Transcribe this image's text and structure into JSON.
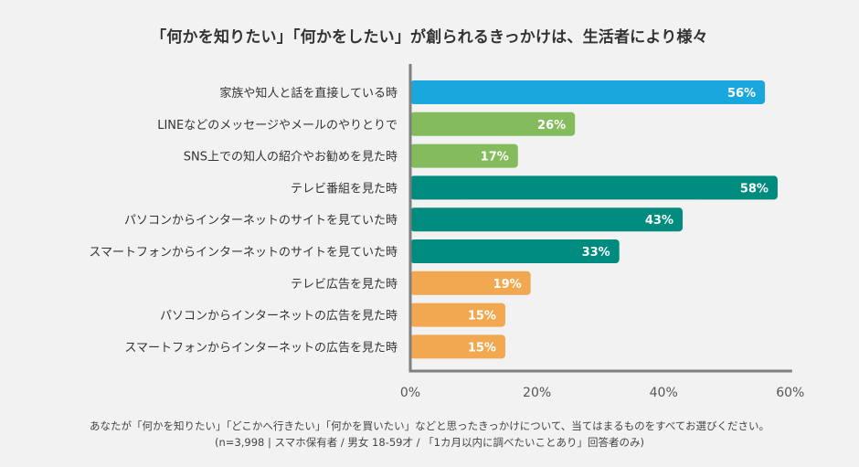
{
  "title": "「何かを知りたい」「何かをしたい」が創られるきっかけは、生活者により様々",
  "footnote": {
    "line1": "あなたが「何かを知りたい」「どこかへ行きたい」「何かを買いたい」などと思ったきっかけについて、当てはまるものをすべてお選びください。",
    "line2": "(n=3,998 | スマホ保有者 / 男女 18-59才 / 「1カ月以内に調べたいことあり」回答者のみ)"
  },
  "chart_data": {
    "type": "bar",
    "orientation": "horizontal",
    "title": "「何かを知りたい」「何かをしたい」が創られるきっかけは、生活者により様々",
    "categories": [
      "家族や知人と話を直接している時",
      "LINEなどのメッセージやメールのやりとりで",
      "SNS上での知人の紹介やお勧めを見た時",
      "テレビ番組を見た時",
      "パソコンからインターネットのサイトを見ていた時",
      "スマートフォンからインターネットのサイトを見ていた時",
      "テレビ広告を見た時",
      "パソコンからインターネットの広告を見た時",
      "スマートフォンからインターネットの広告を見た時"
    ],
    "values": [
      56,
      26,
      17,
      58,
      43,
      33,
      19,
      15,
      15
    ],
    "value_labels": [
      "56%",
      "26%",
      "17%",
      "58%",
      "43%",
      "33%",
      "19%",
      "15%",
      "15%"
    ],
    "bar_colors": [
      "#1aa7de",
      "#84bb5c",
      "#84bb5c",
      "#008b7f",
      "#008b7f",
      "#008b7f",
      "#f2a850",
      "#f2a850",
      "#f2a850"
    ],
    "xlim": [
      0,
      60
    ],
    "xticks": [
      0,
      20,
      40,
      60
    ],
    "xtick_labels": [
      "0%",
      "20%",
      "40%",
      "60%"
    ],
    "xlabel": "",
    "ylabel": "",
    "grid": false,
    "axis_color": "#7f7f7f"
  }
}
